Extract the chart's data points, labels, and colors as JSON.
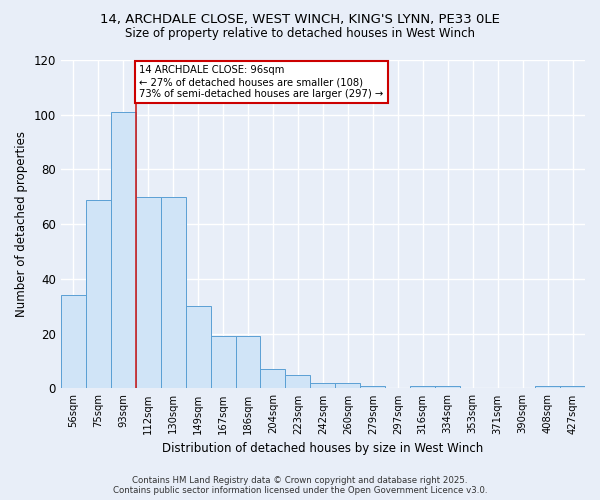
{
  "title_line1": "14, ARCHDALE CLOSE, WEST WINCH, KING'S LYNN, PE33 0LE",
  "title_line2": "Size of property relative to detached houses in West Winch",
  "xlabel": "Distribution of detached houses by size in West Winch",
  "ylabel": "Number of detached properties",
  "bin_labels": [
    "56sqm",
    "75sqm",
    "93sqm",
    "112sqm",
    "130sqm",
    "149sqm",
    "167sqm",
    "186sqm",
    "204sqm",
    "223sqm",
    "242sqm",
    "260sqm",
    "279sqm",
    "297sqm",
    "316sqm",
    "334sqm",
    "353sqm",
    "371sqm",
    "390sqm",
    "408sqm",
    "427sqm"
  ],
  "heights": [
    34,
    69,
    101,
    70,
    70,
    30,
    19,
    19,
    7,
    5,
    2,
    2,
    1,
    0,
    1,
    1,
    0,
    0,
    0,
    1,
    1
  ],
  "bar_facecolor": "#d0e4f7",
  "bar_edgecolor": "#5a9fd4",
  "property_bar_index": 2,
  "property_line_color": "#cc2222",
  "annotation_text": "14 ARCHDALE CLOSE: 96sqm\n← 27% of detached houses are smaller (108)\n73% of semi-detached houses are larger (297) →",
  "annotation_box_facecolor": "#ffffff",
  "annotation_box_edgecolor": "#cc0000",
  "ylim": [
    0,
    120
  ],
  "yticks": [
    0,
    20,
    40,
    60,
    80,
    100,
    120
  ],
  "background_color": "#e8eef8",
  "grid_color": "#ffffff",
  "footer_line1": "Contains HM Land Registry data © Crown copyright and database right 2025.",
  "footer_line2": "Contains public sector information licensed under the Open Government Licence v3.0."
}
